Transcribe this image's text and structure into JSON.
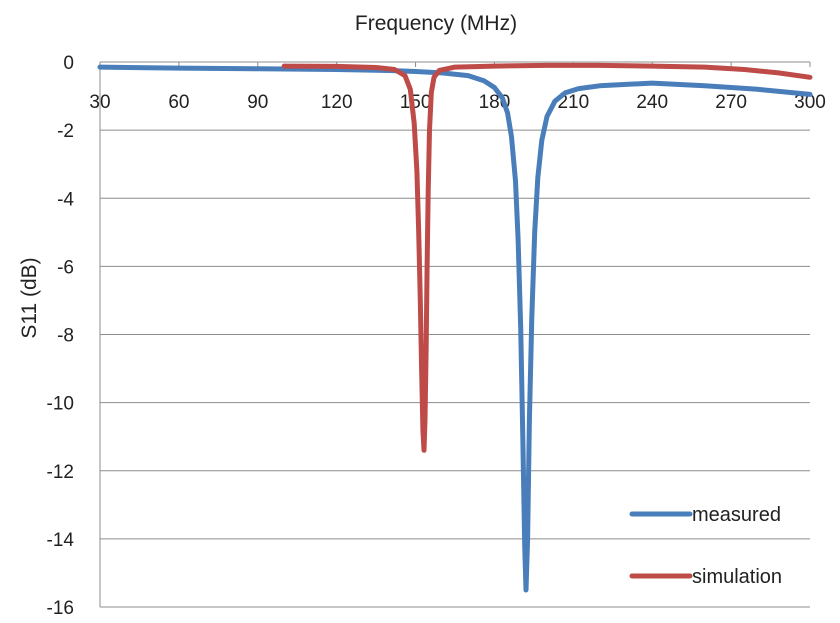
{
  "chart_data": {
    "type": "line",
    "title": "",
    "xlabel": "Frequency (MHz)",
    "ylabel": "S11 (dB)",
    "xlim": [
      30,
      300
    ],
    "ylim": [
      -16,
      0
    ],
    "x_ticks": [
      "30",
      "60",
      "90",
      "120",
      "150",
      "180",
      "210",
      "240",
      "270",
      "300"
    ],
    "y_ticks": [
      "0",
      "-2",
      "-4",
      "-6",
      "-8",
      "-10",
      "-12",
      "-14",
      "-16"
    ],
    "x_axis_position": "top",
    "grid": "horizontal",
    "legend_position": "bottom-right",
    "series": [
      {
        "name": "measured",
        "color": "#4a7ebb",
        "points": [
          [
            30,
            -0.15
          ],
          [
            60,
            -0.18
          ],
          [
            90,
            -0.2
          ],
          [
            120,
            -0.22
          ],
          [
            140,
            -0.25
          ],
          [
            150,
            -0.28
          ],
          [
            160,
            -0.32
          ],
          [
            170,
            -0.4
          ],
          [
            176,
            -0.55
          ],
          [
            180,
            -0.75
          ],
          [
            183,
            -1.05
          ],
          [
            185,
            -1.5
          ],
          [
            186.5,
            -2.2
          ],
          [
            188,
            -3.5
          ],
          [
            189,
            -5.2
          ],
          [
            190,
            -7.8
          ],
          [
            190.8,
            -11.0
          ],
          [
            191.5,
            -14.2
          ],
          [
            192,
            -15.5
          ],
          [
            192.6,
            -14.0
          ],
          [
            193.3,
            -10.5
          ],
          [
            194.2,
            -7.5
          ],
          [
            195.3,
            -5.0
          ],
          [
            196.5,
            -3.4
          ],
          [
            198,
            -2.3
          ],
          [
            200,
            -1.6
          ],
          [
            203,
            -1.15
          ],
          [
            207,
            -0.9
          ],
          [
            212,
            -0.78
          ],
          [
            220,
            -0.7
          ],
          [
            240,
            -0.62
          ],
          [
            260,
            -0.7
          ],
          [
            280,
            -0.8
          ],
          [
            300,
            -0.95
          ]
        ]
      },
      {
        "name": "simulation",
        "color": "#be4b48",
        "points": [
          [
            100,
            -0.12
          ],
          [
            120,
            -0.13
          ],
          [
            135,
            -0.16
          ],
          [
            142,
            -0.22
          ],
          [
            146,
            -0.4
          ],
          [
            148,
            -0.8
          ],
          [
            149.5,
            -1.8
          ],
          [
            150.5,
            -3.2
          ],
          [
            151.2,
            -5.0
          ],
          [
            151.8,
            -7.0
          ],
          [
            152.3,
            -9.0
          ],
          [
            152.8,
            -10.8
          ],
          [
            153.2,
            -11.4
          ],
          [
            153.6,
            -10.5
          ],
          [
            154,
            -8.5
          ],
          [
            154.4,
            -6.0
          ],
          [
            154.8,
            -3.8
          ],
          [
            155.3,
            -2.0
          ],
          [
            156,
            -0.9
          ],
          [
            157,
            -0.45
          ],
          [
            159,
            -0.25
          ],
          [
            165,
            -0.15
          ],
          [
            180,
            -0.12
          ],
          [
            200,
            -0.1
          ],
          [
            220,
            -0.1
          ],
          [
            240,
            -0.12
          ],
          [
            260,
            -0.15
          ],
          [
            275,
            -0.22
          ],
          [
            288,
            -0.32
          ],
          [
            300,
            -0.45
          ]
        ]
      }
    ]
  }
}
